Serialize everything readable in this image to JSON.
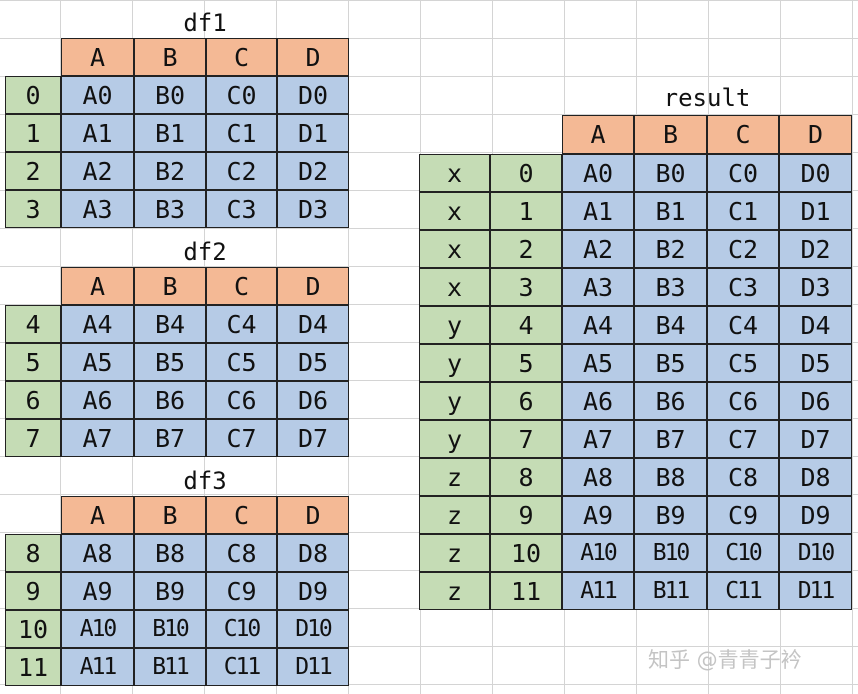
{
  "columns": [
    "A",
    "B",
    "C",
    "D"
  ],
  "frames": [
    {
      "title": "df1",
      "index": [
        "0",
        "1",
        "2",
        "3"
      ],
      "rows": [
        [
          "A0",
          "B0",
          "C0",
          "D0"
        ],
        [
          "A1",
          "B1",
          "C1",
          "D1"
        ],
        [
          "A2",
          "B2",
          "C2",
          "D2"
        ],
        [
          "A3",
          "B3",
          "C3",
          "D3"
        ]
      ]
    },
    {
      "title": "df2",
      "index": [
        "4",
        "5",
        "6",
        "7"
      ],
      "rows": [
        [
          "A4",
          "B4",
          "C4",
          "D4"
        ],
        [
          "A5",
          "B5",
          "C5",
          "D5"
        ],
        [
          "A6",
          "B6",
          "C6",
          "D6"
        ],
        [
          "A7",
          "B7",
          "C7",
          "D7"
        ]
      ]
    },
    {
      "title": "df3",
      "index": [
        "8",
        "9",
        "10",
        "11"
      ],
      "rows": [
        [
          "A8",
          "B8",
          "C8",
          "D8"
        ],
        [
          "A9",
          "B9",
          "C9",
          "D9"
        ],
        [
          "A10",
          "B10",
          "C10",
          "D10"
        ],
        [
          "A11",
          "B11",
          "C11",
          "D11"
        ]
      ]
    }
  ],
  "result": {
    "title": "result",
    "keys": [
      "x",
      "x",
      "x",
      "x",
      "y",
      "y",
      "y",
      "y",
      "z",
      "z",
      "z",
      "z"
    ],
    "index": [
      "0",
      "1",
      "2",
      "3",
      "4",
      "5",
      "6",
      "7",
      "8",
      "9",
      "10",
      "11"
    ],
    "rows": [
      [
        "A0",
        "B0",
        "C0",
        "D0"
      ],
      [
        "A1",
        "B1",
        "C1",
        "D1"
      ],
      [
        "A2",
        "B2",
        "C2",
        "D2"
      ],
      [
        "A3",
        "B3",
        "C3",
        "D3"
      ],
      [
        "A4",
        "B4",
        "C4",
        "D4"
      ],
      [
        "A5",
        "B5",
        "C5",
        "D5"
      ],
      [
        "A6",
        "B6",
        "C6",
        "D6"
      ],
      [
        "A7",
        "B7",
        "C7",
        "D7"
      ],
      [
        "A8",
        "B8",
        "C8",
        "D8"
      ],
      [
        "A9",
        "B9",
        "C9",
        "D9"
      ],
      [
        "A10",
        "B10",
        "C10",
        "D10"
      ],
      [
        "A11",
        "B11",
        "C11",
        "D11"
      ]
    ]
  },
  "watermark": "知乎 @青青子衿",
  "colors": {
    "header": "#f4b995",
    "values": "#b6cbe6",
    "index": "#c5dcb5",
    "grid": "#d4d4d4"
  }
}
